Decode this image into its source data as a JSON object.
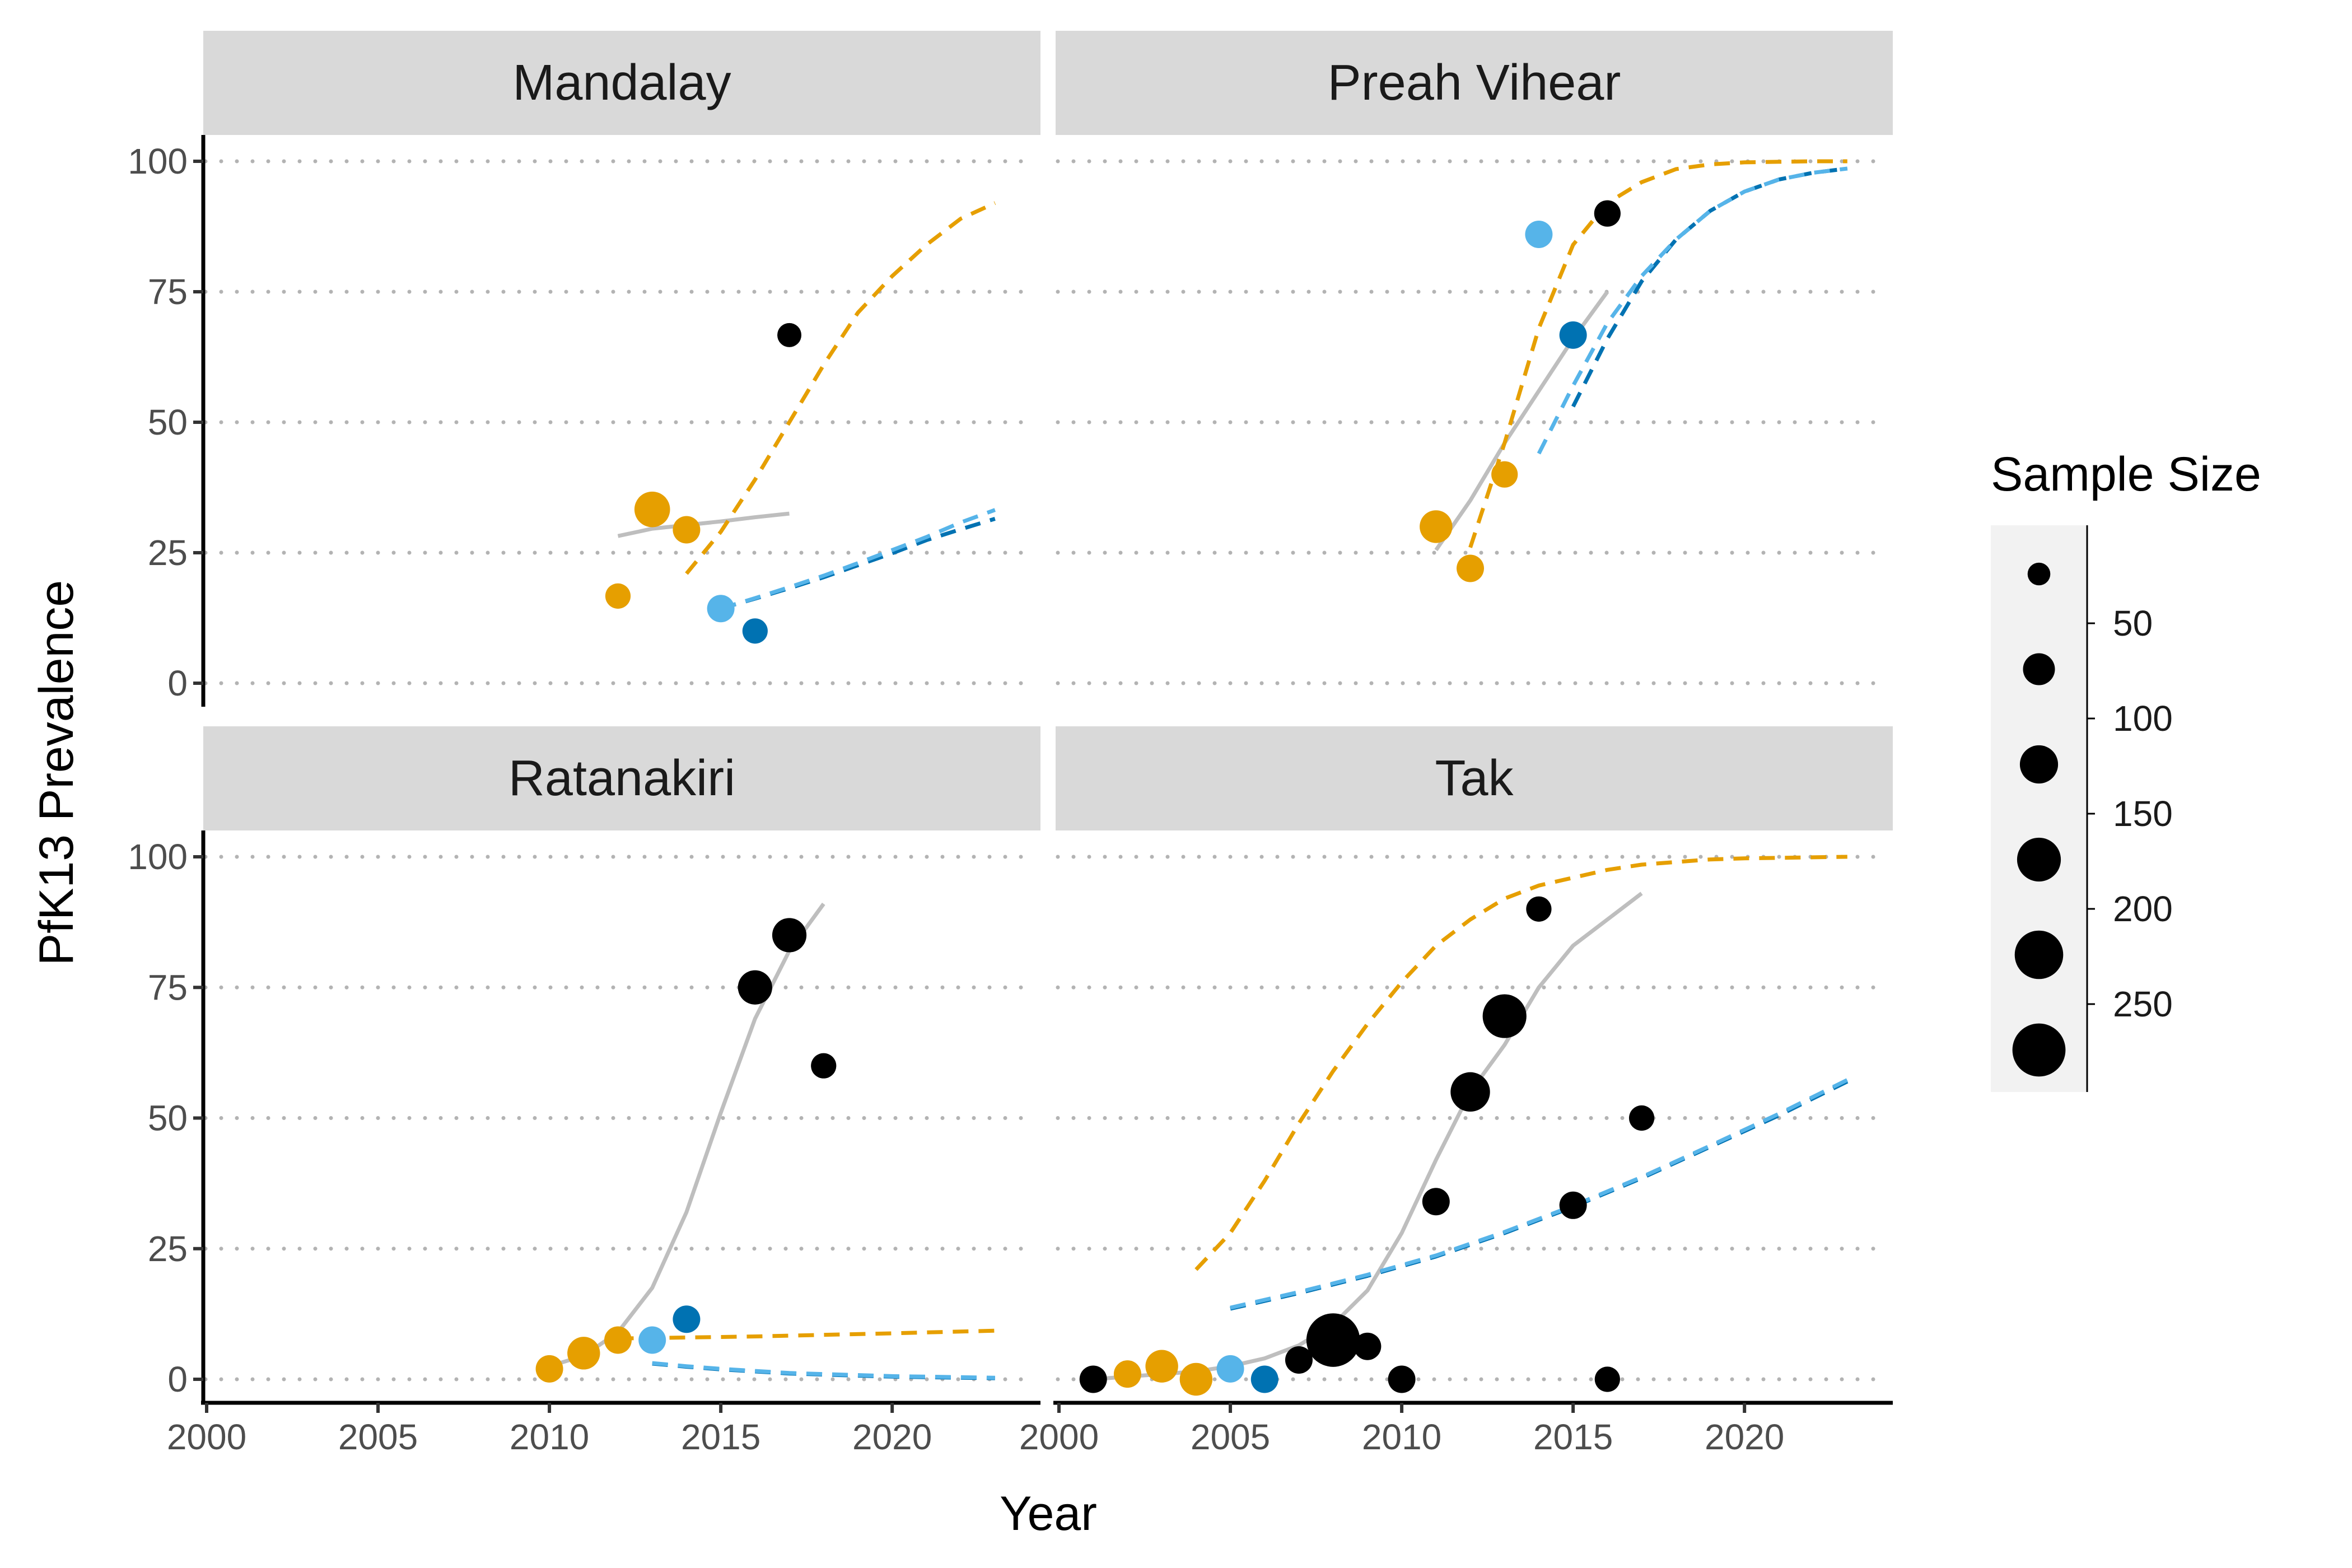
{
  "chart_data": {
    "type": "scatter",
    "xlabel": "Year",
    "ylabel": "PfK13 Prevalence",
    "xlim": [
      2000,
      2024
    ],
    "ylim": [
      0,
      100
    ],
    "x_ticks": [
      2000,
      2005,
      2010,
      2015,
      2020
    ],
    "x_tick_labels": [
      "2000",
      "2005",
      "2010",
      "2015",
      "2020"
    ],
    "y_ticks": [
      0,
      25,
      50,
      75,
      100
    ],
    "y_tick_labels": [
      "0",
      "25",
      "50",
      "75",
      "100"
    ],
    "grid": "horizontal dotted",
    "colors": {
      "black": "#000000",
      "orange": "#E69F00",
      "darkblue": "#0072B2",
      "lightblue": "#56B4E9",
      "grey": "#BEBEBE",
      "strip": "#D9D9D9",
      "legend_bg": "#F2F2F2"
    },
    "legend": {
      "title": "Sample Size",
      "placement": "right",
      "breaks": [
        {
          "label": "50",
          "size": 50
        },
        {
          "label": "100",
          "size": 100
        },
        {
          "label": "150",
          "size": 150
        },
        {
          "label": "200",
          "size": 200
        },
        {
          "label": "250",
          "size": 250
        }
      ],
      "keys": [
        20,
        65,
        110,
        160,
        210,
        265
      ]
    },
    "panels": [
      {
        "title": "Mandalay",
        "points": [
          {
            "x": 2012,
            "y": 16.7,
            "color": "orange",
            "size": 30
          },
          {
            "x": 2013,
            "y": 33.3,
            "color": "orange",
            "size": 90
          },
          {
            "x": 2014,
            "y": 29.4,
            "color": "orange",
            "size": 40
          },
          {
            "x": 2015,
            "y": 14.3,
            "color": "lightblue",
            "size": 40
          },
          {
            "x": 2016,
            "y": 10.0,
            "color": "darkblue",
            "size": 30
          },
          {
            "x": 2017,
            "y": 66.7,
            "color": "black",
            "size": 25
          }
        ],
        "lines": [
          {
            "color": "grey",
            "dash": false,
            "x": [
              2012,
              2013,
              2014,
              2015,
              2016,
              2017
            ],
            "y": [
              28.2,
              29.6,
              30.3,
              31.0,
              31.8,
              32.5
            ]
          },
          {
            "color": "orange",
            "dash": true,
            "x": [
              2014,
              2015,
              2016,
              2017,
              2018,
              2019,
              2020,
              2021,
              2022,
              2023
            ],
            "y": [
              21,
              29,
              39,
              50,
              61,
              71,
              78,
              84,
              89,
              92
            ]
          },
          {
            "color": "darkblue",
            "dash": true,
            "x": [
              2015,
              2016,
              2017,
              2018,
              2019,
              2020,
              2021,
              2022,
              2023
            ],
            "y": [
              14.3,
              16.2,
              18.2,
              20.3,
              22.6,
              24.9,
              27.4,
              29.5,
              31.5
            ]
          },
          {
            "color": "lightblue",
            "dash": true,
            "x": [
              2015,
              2016,
              2017,
              2018,
              2019,
              2020,
              2021,
              2022,
              2023
            ],
            "y": [
              14.3,
              16.3,
              18.4,
              20.6,
              23.0,
              25.5,
              28.0,
              30.8,
              33.2
            ]
          }
        ]
      },
      {
        "title": "Preah Vihear",
        "points": [
          {
            "x": 2011,
            "y": 30.0,
            "color": "orange",
            "size": 70
          },
          {
            "x": 2012,
            "y": 22.0,
            "color": "orange",
            "size": 40
          },
          {
            "x": 2013,
            "y": 40.0,
            "color": "orange",
            "size": 35
          },
          {
            "x": 2014,
            "y": 86.0,
            "color": "lightblue",
            "size": 40
          },
          {
            "x": 2015,
            "y": 66.7,
            "color": "darkblue",
            "size": 40
          },
          {
            "x": 2016,
            "y": 90.0,
            "color": "black",
            "size": 35
          }
        ],
        "lines": [
          {
            "color": "grey",
            "dash": false,
            "x": [
              2011,
              2012,
              2013,
              2014,
              2015,
              2016
            ],
            "y": [
              25.5,
              35,
              46,
              56,
              66,
              75
            ]
          },
          {
            "color": "orange",
            "dash": true,
            "x": [
              2012,
              2013,
              2014,
              2015,
              2016,
              2017,
              2018,
              2019,
              2020,
              2021,
              2022,
              2023
            ],
            "y": [
              26,
              46,
              68,
              84,
              92,
              96,
              98.5,
              99.4,
              99.8,
              99.9,
              100,
              100
            ]
          },
          {
            "color": "darkblue",
            "dash": true,
            "x": [
              2015,
              2016,
              2017,
              2018,
              2019,
              2020,
              2021,
              2022,
              2023
            ],
            "y": [
              53,
              66,
              77,
              85,
              90.5,
              94.2,
              96.5,
              97.8,
              98.6
            ]
          },
          {
            "color": "lightblue",
            "dash": true,
            "x": [
              2014,
              2015,
              2016,
              2017,
              2018,
              2019,
              2020,
              2021,
              2022,
              2023
            ],
            "y": [
              44,
              57,
              69,
              78,
              85,
              90.5,
              94.2,
              96.5,
              97.8,
              98.6
            ]
          }
        ]
      },
      {
        "title": "Ratanakiri",
        "points": [
          {
            "x": 2010,
            "y": 2.0,
            "color": "orange",
            "size": 40
          },
          {
            "x": 2011,
            "y": 5.0,
            "color": "orange",
            "size": 70
          },
          {
            "x": 2012,
            "y": 7.5,
            "color": "orange",
            "size": 40
          },
          {
            "x": 2013,
            "y": 7.5,
            "color": "lightblue",
            "size": 40
          },
          {
            "x": 2014,
            "y": 11.5,
            "color": "darkblue",
            "size": 40
          },
          {
            "x": 2016,
            "y": 75.0,
            "color": "black",
            "size": 80
          },
          {
            "x": 2017,
            "y": 85.0,
            "color": "black",
            "size": 80
          },
          {
            "x": 2018,
            "y": 60.0,
            "color": "black",
            "size": 30
          }
        ],
        "lines": [
          {
            "color": "grey",
            "dash": false,
            "x": [
              2010,
              2011,
              2012,
              2013,
              2014,
              2015,
              2016,
              2017,
              2018
            ],
            "y": [
              2.5,
              4.5,
              9,
              17.5,
              32,
              51,
              69,
              82,
              91
            ]
          },
          {
            "color": "orange",
            "dash": true,
            "x": [
              2012,
              2014,
              2016,
              2018,
              2020,
              2023
            ],
            "y": [
              7.8,
              8.0,
              8.2,
              8.5,
              8.8,
              9.3
            ]
          },
          {
            "color": "darkblue",
            "dash": true,
            "x": [
              2013,
              2014,
              2015,
              2016,
              2017,
              2018,
              2019,
              2020,
              2021,
              2022,
              2023
            ],
            "y": [
              3.0,
              2.4,
              1.9,
              1.5,
              1.1,
              0.9,
              0.7,
              0.5,
              0.4,
              0.3,
              0.2
            ]
          },
          {
            "color": "lightblue",
            "dash": true,
            "x": [
              2013,
              2014,
              2015,
              2016,
              2017,
              2018,
              2019,
              2020,
              2021,
              2022,
              2023
            ],
            "y": [
              3.1,
              2.5,
              2.0,
              1.6,
              1.2,
              1.0,
              0.8,
              0.6,
              0.5,
              0.4,
              0.3
            ]
          }
        ]
      },
      {
        "title": "Tak",
        "points": [
          {
            "x": 2001,
            "y": 0.0,
            "color": "black",
            "size": 40
          },
          {
            "x": 2002,
            "y": 1.0,
            "color": "orange",
            "size": 40
          },
          {
            "x": 2003,
            "y": 2.5,
            "color": "orange",
            "size": 70
          },
          {
            "x": 2004,
            "y": 0.0,
            "color": "orange",
            "size": 70
          },
          {
            "x": 2005,
            "y": 2.0,
            "color": "lightblue",
            "size": 40
          },
          {
            "x": 2006,
            "y": 0.0,
            "color": "darkblue",
            "size": 40
          },
          {
            "x": 2007,
            "y": 3.7,
            "color": "black",
            "size": 40
          },
          {
            "x": 2008,
            "y": 7.5,
            "color": "black",
            "size": 270
          },
          {
            "x": 2009,
            "y": 6.3,
            "color": "black",
            "size": 40
          },
          {
            "x": 2010,
            "y": 0.0,
            "color": "black",
            "size": 40
          },
          {
            "x": 2011,
            "y": 34.0,
            "color": "black",
            "size": 40
          },
          {
            "x": 2012,
            "y": 55.0,
            "color": "black",
            "size": 120
          },
          {
            "x": 2013,
            "y": 69.5,
            "color": "black",
            "size": 160
          },
          {
            "x": 2014,
            "y": 90.0,
            "color": "black",
            "size": 30
          },
          {
            "x": 2015,
            "y": 33.3,
            "color": "black",
            "size": 40
          },
          {
            "x": 2016,
            "y": 0.0,
            "color": "black",
            "size": 30
          },
          {
            "x": 2017,
            "y": 50.0,
            "color": "black",
            "size": 30
          }
        ],
        "lines": [
          {
            "color": "grey",
            "dash": false,
            "x": [
              2001,
              2002,
              2003,
              2004,
              2005,
              2006,
              2007,
              2008,
              2009,
              2010,
              2011,
              2012,
              2013,
              2014,
              2015,
              2016,
              2017
            ],
            "y": [
              0,
              0.5,
              1,
              1.5,
              2.5,
              4,
              6.5,
              10.5,
              17,
              28,
              42,
              55,
              64,
              75,
              83,
              88,
              93
            ]
          },
          {
            "color": "orange",
            "dash": true,
            "x": [
              2004,
              2005,
              2006,
              2007,
              2008,
              2009,
              2010,
              2011,
              2012,
              2013,
              2014,
              2015,
              2016,
              2017,
              2018,
              2019,
              2020,
              2021,
              2022,
              2023
            ],
            "y": [
              21,
              28,
              38,
              49,
              59,
              68,
              76,
              83,
              88,
              92,
              94.5,
              96,
              97.5,
              98.5,
              99,
              99.5,
              99.7,
              99.8,
              99.9,
              100
            ]
          },
          {
            "color": "darkblue",
            "dash": true,
            "x": [
              2005,
              2007,
              2009,
              2011,
              2013,
              2015,
              2017,
              2019,
              2021,
              2023
            ],
            "y": [
              13.5,
              16.5,
              19.8,
              23.5,
              28,
              33,
              38.5,
              44.5,
              50.5,
              57
            ]
          },
          {
            "color": "lightblue",
            "dash": true,
            "x": [
              2005,
              2007,
              2009,
              2011,
              2013,
              2015,
              2017,
              2019,
              2021,
              2023
            ],
            "y": [
              13.7,
              16.7,
              20,
              23.7,
              28.2,
              33.2,
              38.7,
              44.7,
              50.8,
              57.3
            ]
          }
        ]
      }
    ]
  }
}
